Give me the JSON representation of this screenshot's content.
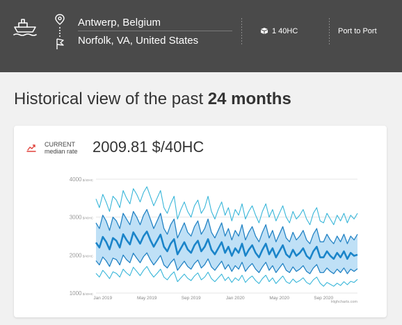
{
  "header": {
    "origin": "Antwerp, Belgium",
    "destination": "Norfolk, VA, United States",
    "container": "1 40HC",
    "service": "Port to Port",
    "icons": [
      "ship-icon",
      "location-pin-icon",
      "route-dots-icon",
      "flag-icon",
      "container-icon"
    ]
  },
  "title": {
    "prefix": "Historical view of the past",
    "highlight": "24 months"
  },
  "current": {
    "label_line1": "CURRENT",
    "label_line2": "median rate",
    "value": "2009.81 $/40HC",
    "icon": "trend-chart-icon",
    "icon_color": "#e0413a"
  },
  "colors": {
    "header_bg": "#4a4a4a",
    "band_fill": "#bfe0f6",
    "median": "#1a84c9",
    "inner": "#2383c4",
    "outer": "#38b6d9"
  },
  "chart_data": {
    "type": "area",
    "ylim": [
      1000,
      4000
    ],
    "y_ticks": [
      1000,
      2000,
      3000,
      4000
    ],
    "y_unit": "$/40HC",
    "x_ticks": [
      "Jan 2019",
      "May 2019",
      "Sep 2019",
      "Jan 2020",
      "May 2020",
      "Sep 2020"
    ],
    "x_tick_index": [
      2,
      15,
      28,
      41,
      54,
      67
    ],
    "credit": "Highcharts.com",
    "grid": true,
    "series": [
      {
        "values": [
          3480,
          3250,
          3600,
          3400,
          3150,
          3550,
          3450,
          3250,
          3700,
          3500,
          3350,
          3750,
          3600,
          3400,
          3650,
          3800,
          3550,
          3300,
          3500,
          3700,
          3250,
          3100,
          3350,
          3550,
          2950,
          3200,
          3400,
          3150,
          3000,
          3300,
          3450,
          3100,
          3250,
          3550,
          3150,
          2950,
          3200,
          3400,
          3050,
          3250,
          2900,
          3200,
          3050,
          3350,
          2950,
          3150,
          3300,
          3050,
          2850,
          3150,
          3350,
          3000,
          3200,
          2900,
          3100,
          3300,
          3000,
          2850,
          3150,
          2950,
          3050,
          3200,
          2950,
          2800,
          3100,
          3250,
          2900,
          2850,
          3100,
          2950,
          2800,
          3050,
          2900,
          3100,
          2850,
          3050,
          2950,
          3100
        ]
      },
      {
        "values": [
          2850,
          2700,
          3050,
          2900,
          2650,
          3000,
          2900,
          2700,
          3100,
          2950,
          2800,
          3150,
          3000,
          2800,
          3050,
          3200,
          2950,
          2700,
          2900,
          3100,
          2700,
          2550,
          2800,
          2950,
          2450,
          2650,
          2850,
          2600,
          2500,
          2750,
          2900,
          2550,
          2700,
          2950,
          2600,
          2450,
          2650,
          2850,
          2500,
          2700,
          2400,
          2650,
          2500,
          2800,
          2400,
          2600,
          2750,
          2500,
          2350,
          2600,
          2800,
          2450,
          2650,
          2350,
          2550,
          2750,
          2450,
          2350,
          2600,
          2400,
          2500,
          2650,
          2400,
          2300,
          2550,
          2700,
          2350,
          2350,
          2550,
          2400,
          2300,
          2500,
          2350,
          2550,
          2300,
          2500,
          2400,
          2550
        ]
      },
      {
        "values": [
          2330,
          2200,
          2480,
          2350,
          2150,
          2450,
          2380,
          2200,
          2550,
          2400,
          2280,
          2600,
          2450,
          2300,
          2500,
          2620,
          2400,
          2220,
          2380,
          2540,
          2220,
          2100,
          2300,
          2420,
          2020,
          2180,
          2340,
          2150,
          2060,
          2260,
          2380,
          2100,
          2220,
          2420,
          2140,
          2020,
          2180,
          2340,
          2060,
          2220,
          1980,
          2180,
          2060,
          2300,
          1980,
          2140,
          2260,
          2060,
          1940,
          2140,
          2300,
          2020,
          2180,
          1940,
          2100,
          2260,
          2020,
          1940,
          2140,
          1980,
          2060,
          2180,
          1980,
          1900,
          2100,
          2220,
          1940,
          1940,
          2100,
          1980,
          1900,
          2060,
          1940,
          2100,
          1900,
          2060,
          1980,
          2010
        ]
      },
      {
        "values": [
          1850,
          1740,
          1950,
          1850,
          1700,
          1920,
          1880,
          1740,
          2000,
          1880,
          1800,
          2050,
          1920,
          1800,
          1960,
          2060,
          1880,
          1740,
          1860,
          1990,
          1740,
          1660,
          1800,
          1900,
          1600,
          1720,
          1840,
          1700,
          1630,
          1780,
          1870,
          1660,
          1750,
          1900,
          1690,
          1600,
          1720,
          1840,
          1630,
          1750,
          1570,
          1720,
          1630,
          1810,
          1570,
          1690,
          1780,
          1630,
          1540,
          1690,
          1810,
          1600,
          1720,
          1540,
          1660,
          1780,
          1600,
          1540,
          1690,
          1570,
          1630,
          1720,
          1570,
          1510,
          1660,
          1750,
          1540,
          1540,
          1660,
          1570,
          1510,
          1630,
          1540,
          1660,
          1510,
          1630,
          1570,
          1640
        ]
      },
      {
        "values": [
          1520,
          1420,
          1600,
          1500,
          1380,
          1560,
          1520,
          1420,
          1630,
          1530,
          1460,
          1680,
          1570,
          1460,
          1600,
          1700,
          1540,
          1420,
          1520,
          1630,
          1420,
          1350,
          1470,
          1560,
          1300,
          1400,
          1500,
          1390,
          1330,
          1450,
          1530,
          1350,
          1420,
          1550,
          1380,
          1300,
          1400,
          1500,
          1330,
          1420,
          1280,
          1400,
          1330,
          1470,
          1280,
          1380,
          1450,
          1330,
          1250,
          1380,
          1470,
          1300,
          1400,
          1250,
          1350,
          1450,
          1300,
          1250,
          1370,
          1280,
          1330,
          1400,
          1280,
          1230,
          1350,
          1420,
          1260,
          1180,
          1280,
          1230,
          1180,
          1260,
          1200,
          1300,
          1220,
          1310,
          1280,
          1360
        ]
      }
    ]
  }
}
